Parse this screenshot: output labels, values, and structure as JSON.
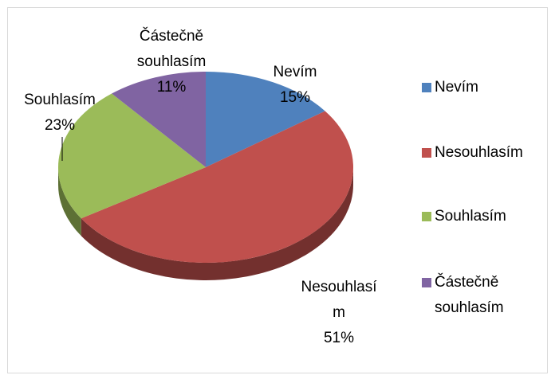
{
  "chart_data": {
    "type": "pie3d",
    "categories": [
      "Nevím",
      "Nesouhlasím",
      "Souhlasím",
      "Částečně souhlasím"
    ],
    "values": [
      15,
      51,
      23,
      11
    ],
    "value_labels": [
      "15%",
      "51%",
      "23%",
      "11%"
    ],
    "colors": [
      "#4f81bd",
      "#c0504d",
      "#9bbb59",
      "#8064a2"
    ],
    "legend": "right"
  }
}
